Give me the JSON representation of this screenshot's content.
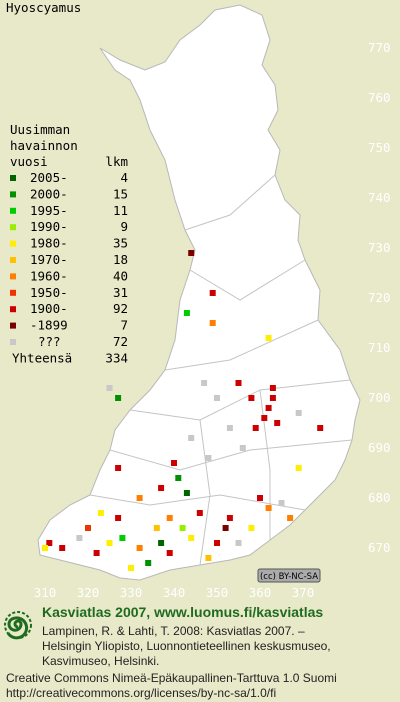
{
  "title": "Hyoscyamus",
  "legend": {
    "header": [
      "Uusimman",
      "havainnon",
      "vuosi"
    ],
    "count_header": "lkm",
    "rows": [
      {
        "label": "2005-",
        "count": 4,
        "color": "#006400"
      },
      {
        "label": "2000-",
        "count": 15,
        "color": "#009000"
      },
      {
        "label": "1995-",
        "count": 11,
        "color": "#00cc00"
      },
      {
        "label": "1990-",
        "count": 9,
        "color": "#99ee00"
      },
      {
        "label": "1980-",
        "count": 35,
        "color": "#ffee00"
      },
      {
        "label": "1970-",
        "count": 18,
        "color": "#ffc000"
      },
      {
        "label": "1960-",
        "count": 40,
        "color": "#ff7f00"
      },
      {
        "label": "1950-",
        "count": 31,
        "color": "#ee3300"
      },
      {
        "label": "1900-",
        "count": 92,
        "color": "#cc0000"
      },
      {
        "label": "-1899",
        "count": 7,
        "color": "#7a0000"
      },
      {
        "label": "???",
        "count": 72,
        "color": "#c8c8c8"
      }
    ],
    "total_label": "Yhteensä",
    "total": 334
  },
  "yticks": [
    770,
    760,
    750,
    740,
    730,
    720,
    710,
    700,
    690,
    680,
    670
  ],
  "xticks": [
    310,
    320,
    330,
    340,
    350,
    360,
    370
  ],
  "observations": [
    [
      344,
      729,
      9
    ],
    [
      349,
      721,
      8
    ],
    [
      343,
      717,
      2
    ],
    [
      349,
      715,
      6
    ],
    [
      362,
      712,
      4
    ],
    [
      327,
      700,
      1
    ],
    [
      325,
      702,
      10
    ],
    [
      347,
      703,
      10
    ],
    [
      355,
      703,
      8
    ],
    [
      362,
      698,
      8
    ],
    [
      363,
      700,
      8
    ],
    [
      361,
      696,
      8
    ],
    [
      364,
      695,
      8
    ],
    [
      363,
      702,
      8
    ],
    [
      353,
      694,
      10
    ],
    [
      359,
      694,
      8
    ],
    [
      369,
      697,
      10
    ],
    [
      374,
      694,
      8
    ],
    [
      344,
      692,
      10
    ],
    [
      348,
      688,
      10
    ],
    [
      340,
      687,
      8
    ],
    [
      327,
      686,
      8
    ],
    [
      369,
      686,
      4
    ],
    [
      341,
      684,
      1
    ],
    [
      337,
      682,
      8
    ],
    [
      343,
      681,
      0
    ],
    [
      332,
      680,
      6
    ],
    [
      360,
      680,
      8
    ],
    [
      365,
      679,
      10
    ],
    [
      323,
      677,
      4
    ],
    [
      327,
      676,
      8
    ],
    [
      339,
      676,
      6
    ],
    [
      346,
      677,
      8
    ],
    [
      353,
      676,
      8
    ],
    [
      362,
      678,
      6
    ],
    [
      367,
      676,
      6
    ],
    [
      311,
      671,
      8
    ],
    [
      314,
      670,
      8
    ],
    [
      310,
      670,
      4
    ],
    [
      322,
      669,
      8
    ],
    [
      325,
      671,
      4
    ],
    [
      328,
      672,
      2
    ],
    [
      332,
      670,
      6
    ],
    [
      337,
      671,
      0
    ],
    [
      339,
      669,
      8
    ],
    [
      344,
      672,
      4
    ],
    [
      350,
      671,
      8
    ],
    [
      355,
      671,
      10
    ],
    [
      358,
      674,
      4
    ],
    [
      330,
      666,
      4
    ],
    [
      334,
      667,
      1
    ],
    [
      318,
      672,
      10
    ],
    [
      358,
      700,
      8
    ],
    [
      356,
      690,
      10
    ],
    [
      350,
      700,
      10
    ],
    [
      342,
      674,
      3
    ],
    [
      336,
      674,
      5
    ],
    [
      320,
      674,
      7
    ],
    [
      348,
      668,
      5
    ],
    [
      352,
      674,
      9
    ]
  ],
  "cc_badge": "(cc) BY-NC-SA",
  "footer": {
    "heading": "Kasviatlas 2007, www.luomus.fi/kasviatlas",
    "citation": [
      "Lampinen, R. & Lahti, T. 2008: Kasviatlas 2007. –",
      "Helsingin Yliopisto, Luonnontieteellinen keskusmuseo,",
      "Kasvimuseo, Helsinki."
    ],
    "license": [
      "Creative Commons Nimeä-Epäkaupallinen-Tarttuva 1.0 Suomi",
      "http://creativecommons.org/licenses/by-nc-sa/1.0/fi"
    ]
  }
}
